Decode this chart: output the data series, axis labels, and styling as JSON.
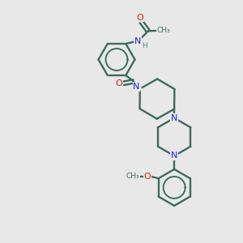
{
  "bg_color": "#e8e8e8",
  "bond_color": "#3d6b5e",
  "n_color": "#2222cc",
  "o_color": "#cc2020",
  "h_color": "#5a8a7a",
  "lw": 1.7,
  "fs": 8.0,
  "fss": 6.5,
  "xlim": [
    0,
    10
  ],
  "ylim": [
    0,
    10
  ]
}
